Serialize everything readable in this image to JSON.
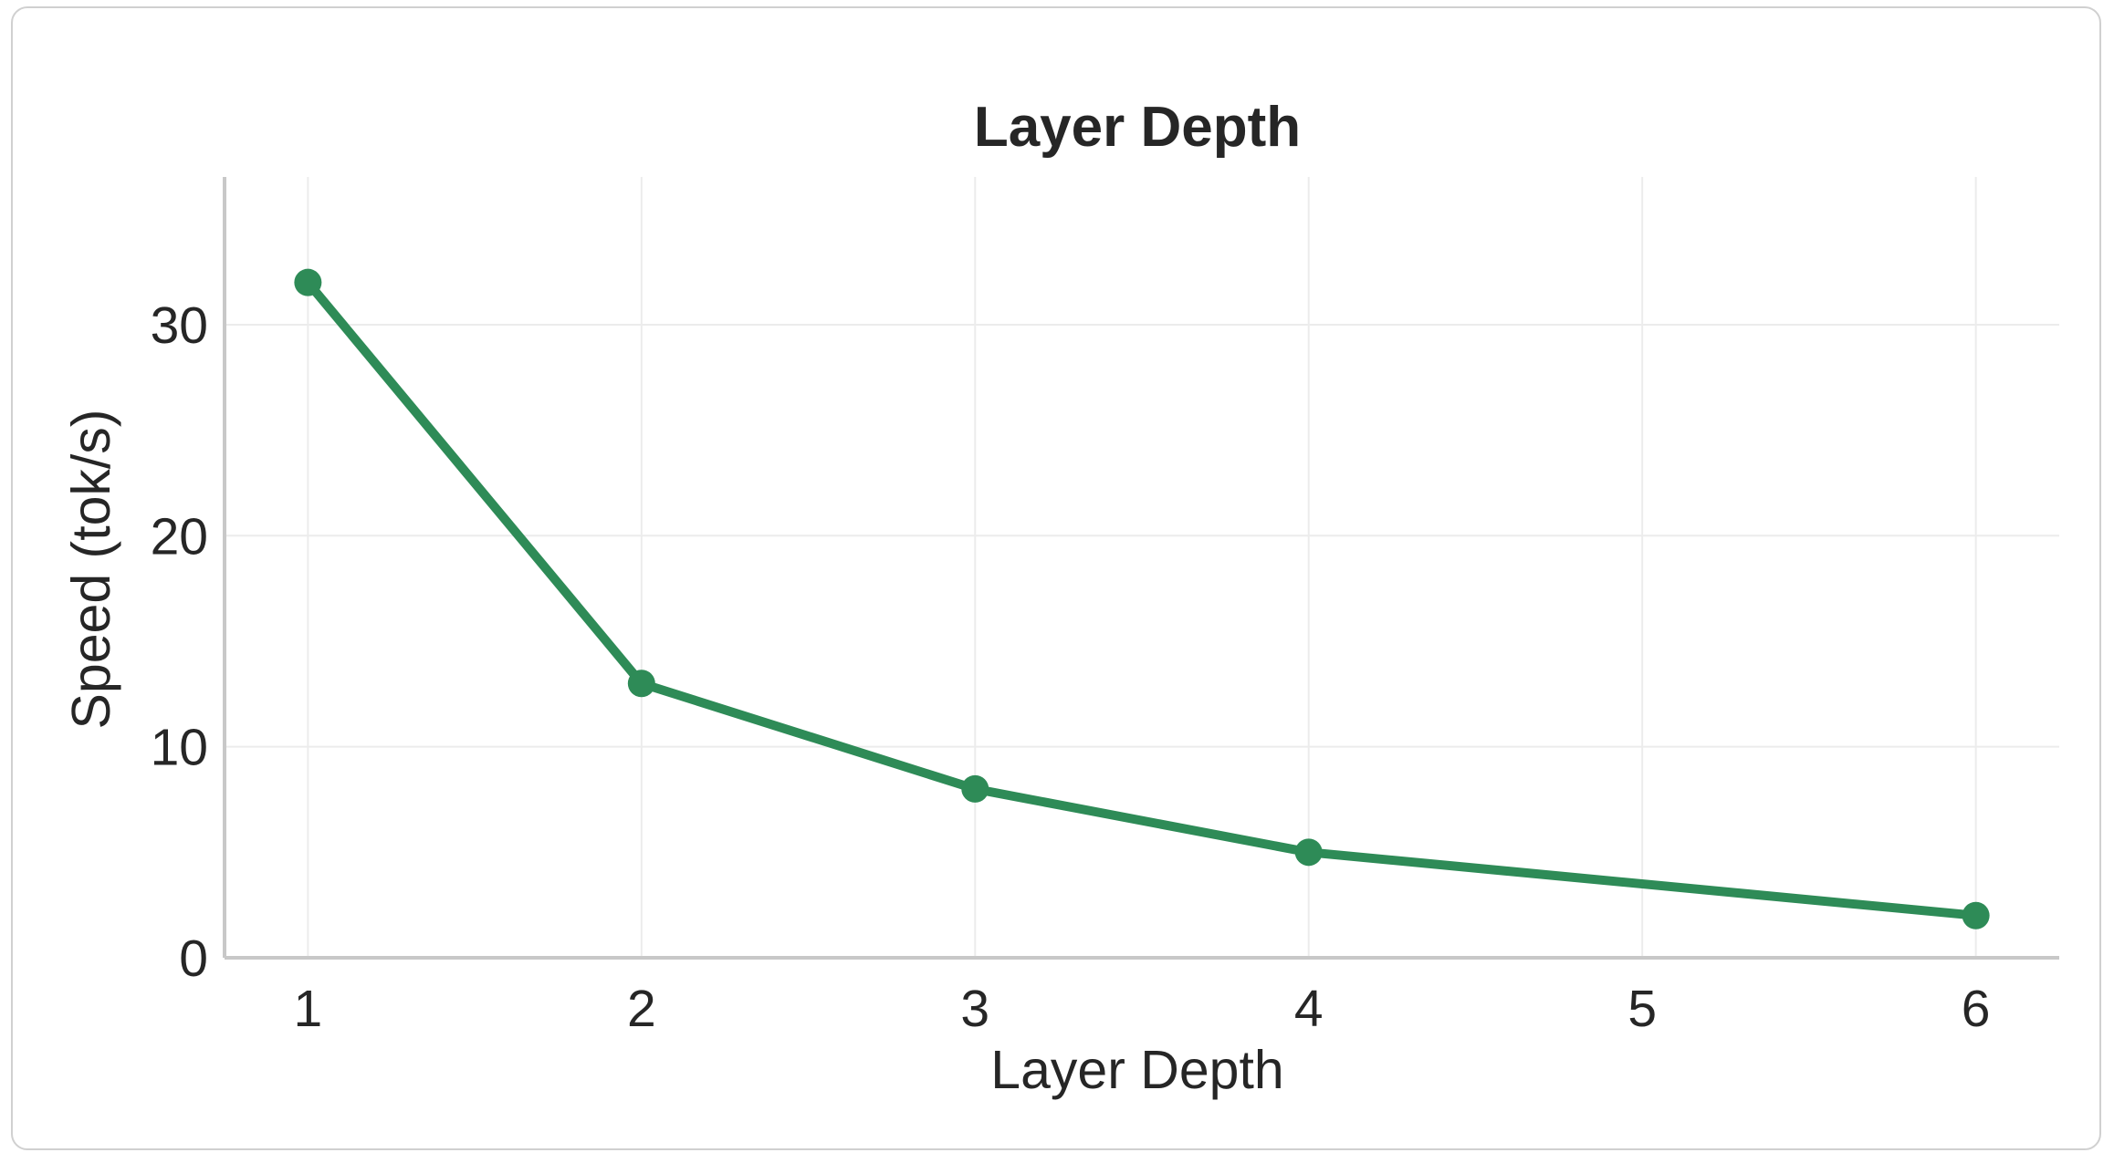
{
  "chart_data": {
    "type": "line",
    "title": "Layer Depth",
    "xlabel": "Layer Depth",
    "ylabel": "Speed (tok/s)",
    "x": [
      1,
      2,
      3,
      4,
      6
    ],
    "xticks": [
      "1",
      "2",
      "3",
      "4",
      "5",
      "6"
    ],
    "yticks": [
      "0",
      "10",
      "20",
      "30"
    ],
    "xlim": [
      0.75,
      6.25
    ],
    "ylim": [
      0,
      37
    ],
    "grid": true,
    "series": [
      {
        "values": [
          32,
          13,
          8,
          5,
          2
        ],
        "color": "#2e8b57"
      }
    ]
  }
}
